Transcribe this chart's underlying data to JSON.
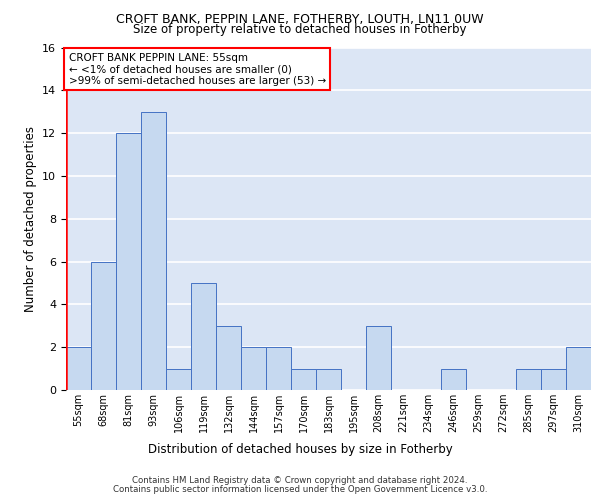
{
  "title1": "CROFT BANK, PEPPIN LANE, FOTHERBY, LOUTH, LN11 0UW",
  "title2": "Size of property relative to detached houses in Fotherby",
  "xlabel": "Distribution of detached houses by size in Fotherby",
  "ylabel": "Number of detached properties",
  "bin_labels": [
    "55sqm",
    "68sqm",
    "81sqm",
    "93sqm",
    "106sqm",
    "119sqm",
    "132sqm",
    "144sqm",
    "157sqm",
    "170sqm",
    "183sqm",
    "195sqm",
    "208sqm",
    "221sqm",
    "234sqm",
    "246sqm",
    "259sqm",
    "272sqm",
    "285sqm",
    "297sqm",
    "310sqm"
  ],
  "bar_values": [
    2,
    6,
    12,
    13,
    1,
    5,
    3,
    2,
    2,
    1,
    1,
    0,
    3,
    0,
    0,
    1,
    0,
    0,
    1,
    1,
    2
  ],
  "bar_color": "#c6d9f0",
  "bar_edge_color": "#4472c4",
  "highlight_color": "#ff0000",
  "annotation_text": "CROFT BANK PEPPIN LANE: 55sqm\n← <1% of detached houses are smaller (0)\n>99% of semi-detached houses are larger (53) →",
  "annotation_box_color": "#ffffff",
  "annotation_box_edge": "#ff0000",
  "ylim": [
    0,
    16
  ],
  "yticks": [
    0,
    2,
    4,
    6,
    8,
    10,
    12,
    14,
    16
  ],
  "footer1": "Contains HM Land Registry data © Crown copyright and database right 2024.",
  "footer2": "Contains public sector information licensed under the Open Government Licence v3.0.",
  "bg_color": "#dce6f5",
  "grid_color": "#ffffff"
}
